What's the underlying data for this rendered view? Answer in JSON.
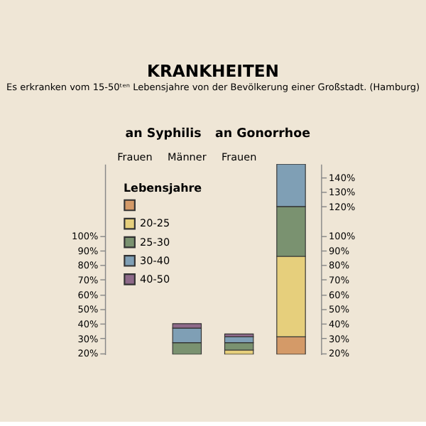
{
  "chart_data": {
    "type": "bar",
    "title": "KRANKHEITEN",
    "subtitle": "Es erkranken vom 15-50ᵗᵉⁿ Lebensjahre von der Bevölkerung einer Großstadt. (Hamburg)",
    "annotations": [
      "an Syphilis",
      "an Gonorrhoe"
    ],
    "categories": [
      "Frauen",
      "Männer",
      "Frauen",
      null
    ],
    "legend_title": "Lebensjahre",
    "legend": "top left",
    "series": [
      {
        "color": "#d49a68",
        "values": [
          null,
          null,
          null,
          12
        ],
        "base": [
          null,
          null,
          null,
          19
        ]
      },
      {
        "name": "20-25",
        "color": "#e6cf7c",
        "values": [
          null,
          null,
          3,
          55
        ],
        "base": [
          null,
          null,
          19,
          31
        ]
      },
      {
        "name": "25-30",
        "color": "#7a9270",
        "values": [
          null,
          8,
          5,
          34
        ],
        "base": [
          null,
          19,
          22,
          86
        ]
      },
      {
        "name": "30-40",
        "color": "#7f9fb5",
        "values": [
          null,
          10,
          4,
          29
        ],
        "base": [
          null,
          27,
          27,
          120
        ]
      },
      {
        "name": "40-50",
        "color": "#8e6a8a",
        "values": [
          null,
          3,
          2,
          null
        ],
        "base": [
          null,
          37,
          31,
          null
        ]
      }
    ],
    "ylim": [
      19,
      149
    ],
    "yticks": [
      {
        "value": 20,
        "label": "20%"
      },
      {
        "value": 30,
        "label": "30%"
      },
      {
        "value": 40,
        "label": "40%"
      },
      {
        "value": 50,
        "label": "50%"
      },
      {
        "value": 60,
        "label": "60%"
      },
      {
        "value": 70,
        "label": "70%"
      },
      {
        "value": 80,
        "label": "80%"
      },
      {
        "value": 90,
        "label": "90%"
      },
      {
        "value": 100,
        "label": "100%"
      }
    ],
    "y2lim": [
      19,
      149
    ],
    "y2ticks": [
      {
        "value": 20,
        "label": "20%"
      },
      {
        "value": 30,
        "label": "30%"
      },
      {
        "value": 40,
        "label": "40%"
      },
      {
        "value": 50,
        "label": "50%"
      },
      {
        "value": 60,
        "label": "60%"
      },
      {
        "value": 70,
        "label": "70%"
      },
      {
        "value": 80,
        "label": "80%"
      },
      {
        "value": 90,
        "label": "90%"
      },
      {
        "value": 100,
        "label": "100%"
      },
      {
        "value": 120,
        "label": "120%"
      },
      {
        "value": 130,
        "label": "130%"
      },
      {
        "value": 140,
        "label": "140%"
      }
    ],
    "grid": false
  }
}
